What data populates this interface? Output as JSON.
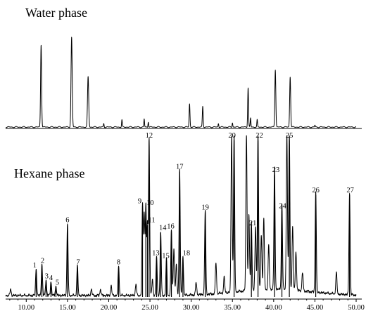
{
  "chart_data": [
    {
      "type": "line",
      "title": "Water phase",
      "xlim": [
        7.5,
        50.0
      ],
      "ylim": [
        0,
        100
      ],
      "peaks": [
        {
          "x": 11.8,
          "h": 92,
          "w": 0.06
        },
        {
          "x": 15.5,
          "h": 100,
          "w": 0.07
        },
        {
          "x": 17.5,
          "h": 56,
          "w": 0.07
        },
        {
          "x": 19.4,
          "h": 4,
          "w": 0.04
        },
        {
          "x": 21.6,
          "h": 8,
          "w": 0.04
        },
        {
          "x": 24.3,
          "h": 9,
          "w": 0.04
        },
        {
          "x": 24.8,
          "h": 6,
          "w": 0.04
        },
        {
          "x": 29.8,
          "h": 26,
          "w": 0.05
        },
        {
          "x": 31.4,
          "h": 23,
          "w": 0.05
        },
        {
          "x": 33.3,
          "h": 4,
          "w": 0.04
        },
        {
          "x": 35.0,
          "h": 5,
          "w": 0.04
        },
        {
          "x": 36.9,
          "h": 44,
          "w": 0.05
        },
        {
          "x": 37.2,
          "h": 10,
          "w": 0.04
        },
        {
          "x": 38.0,
          "h": 8,
          "w": 0.04
        },
        {
          "x": 40.2,
          "h": 64,
          "w": 0.06
        },
        {
          "x": 42.0,
          "h": 56,
          "w": 0.06
        },
        {
          "x": 45.0,
          "h": 2,
          "w": 0.04
        }
      ]
    },
    {
      "type": "line",
      "title": "Hexane phase",
      "xlabel": "",
      "ylabel": "",
      "xlim": [
        7.5,
        50.0
      ],
      "ylim": [
        0,
        100
      ],
      "x_ticks": [
        "10.00",
        "15.00",
        "20.00",
        "25.00",
        "30.00",
        "35.00",
        "40.00",
        "45.00",
        "50.00"
      ],
      "x_tick_values": [
        10,
        15,
        20,
        25,
        30,
        35,
        40,
        45,
        50
      ],
      "peaks": [
        {
          "label": "1",
          "x": 11.2,
          "h": 17
        },
        {
          "label": "2",
          "x": 11.9,
          "h": 20
        },
        {
          "label": "3",
          "x": 12.4,
          "h": 10
        },
        {
          "label": "4",
          "x": 13.0,
          "h": 9
        },
        {
          "label": "5",
          "x": 13.6,
          "h": 6
        },
        {
          "label": "6",
          "x": 15.0,
          "h": 46
        },
        {
          "label": "7",
          "x": 16.2,
          "h": 19
        },
        {
          "label": "8",
          "x": 21.2,
          "h": 19
        },
        {
          "label": "9",
          "x": 24.1,
          "h": 58
        },
        {
          "label": "10",
          "x": 24.5,
          "h": 57
        },
        {
          "label": "11",
          "x": 24.7,
          "h": 46
        },
        {
          "label": "12",
          "x": 24.9,
          "h": 100
        },
        {
          "label": "13",
          "x": 25.8,
          "h": 25
        },
        {
          "label": "14",
          "x": 26.3,
          "h": 41
        },
        {
          "label": "15",
          "x": 27.0,
          "h": 23
        },
        {
          "label": "16",
          "x": 27.6,
          "h": 42
        },
        {
          "label": "17",
          "x": 28.6,
          "h": 80
        },
        {
          "label": "18",
          "x": 29.0,
          "h": 25
        },
        {
          "label": "19",
          "x": 31.7,
          "h": 54
        },
        {
          "label": "20",
          "x": 35.2,
          "h": 100
        },
        {
          "label": "21",
          "x": 37.3,
          "h": 44
        },
        {
          "label": "22",
          "x": 38.1,
          "h": 100
        },
        {
          "label": "23",
          "x": 40.1,
          "h": 78
        },
        {
          "label": "24",
          "x": 41.0,
          "h": 55
        },
        {
          "label": "25",
          "x": 41.9,
          "h": 100
        },
        {
          "label": "26",
          "x": 45.1,
          "h": 65
        },
        {
          "label": "27",
          "x": 49.2,
          "h": 65
        }
      ],
      "extra_peaks": [
        {
          "x": 8.1,
          "h": 4
        },
        {
          "x": 17.9,
          "h": 4
        },
        {
          "x": 19.0,
          "h": 4
        },
        {
          "x": 20.3,
          "h": 6
        },
        {
          "x": 23.3,
          "h": 7
        },
        {
          "x": 24.3,
          "h": 52
        },
        {
          "x": 25.3,
          "h": 10
        },
        {
          "x": 27.9,
          "h": 30
        },
        {
          "x": 28.2,
          "h": 20
        },
        {
          "x": 30.6,
          "h": 8
        },
        {
          "x": 33.0,
          "h": 20
        },
        {
          "x": 34.0,
          "h": 10
        },
        {
          "x": 34.9,
          "h": 100
        },
        {
          "x": 36.7,
          "h": 100
        },
        {
          "x": 37.0,
          "h": 48
        },
        {
          "x": 37.8,
          "h": 40
        },
        {
          "x": 38.5,
          "h": 35
        },
        {
          "x": 38.8,
          "h": 45
        },
        {
          "x": 39.4,
          "h": 28
        },
        {
          "x": 41.6,
          "h": 100
        },
        {
          "x": 42.3,
          "h": 40
        },
        {
          "x": 42.7,
          "h": 25
        },
        {
          "x": 43.5,
          "h": 12
        },
        {
          "x": 47.6,
          "h": 14
        }
      ]
    }
  ]
}
